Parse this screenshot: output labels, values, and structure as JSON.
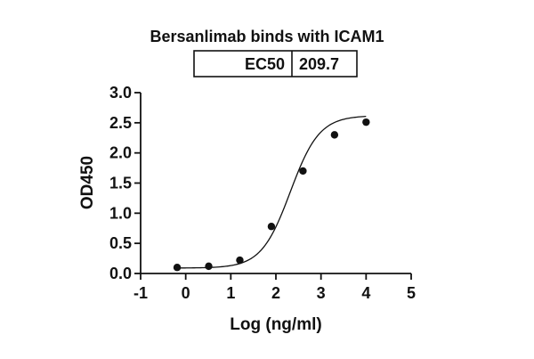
{
  "chart_data": {
    "type": "scatter",
    "title": "Bersanlimab binds with ICAM1",
    "xlabel": "Log (ng/ml)",
    "ylabel": "OD450",
    "xlim": [
      -1,
      5
    ],
    "ylim": [
      0,
      3.0
    ],
    "xticks": [
      "-1",
      "0",
      "1",
      "2",
      "3",
      "4",
      "5"
    ],
    "yticks": [
      "0.0",
      "0.5",
      "1.0",
      "1.5",
      "2.0",
      "2.5",
      "3.0"
    ],
    "grid": false,
    "legend": null,
    "fit": "4-parameter logistic curve",
    "annotation_table": {
      "label": "EC50",
      "value": "209.7"
    },
    "series": [
      {
        "name": "Bersanlimab",
        "x": [
          -0.19,
          0.51,
          1.2,
          1.9,
          2.6,
          3.3,
          4.0
        ],
        "y": [
          0.1,
          0.12,
          0.22,
          0.78,
          1.7,
          2.3,
          2.51
        ]
      }
    ]
  }
}
